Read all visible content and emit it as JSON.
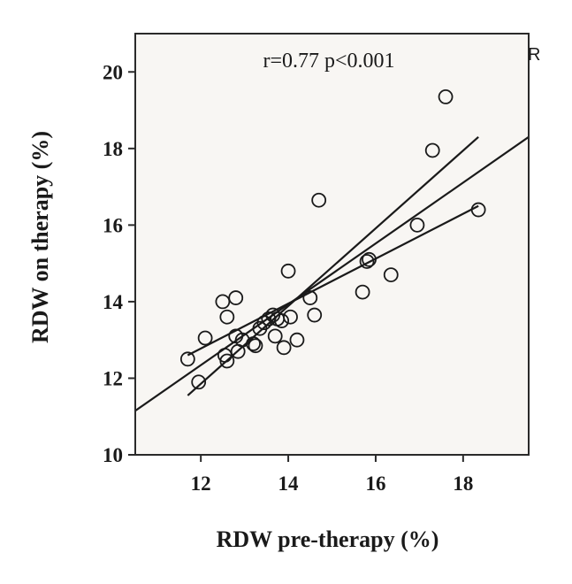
{
  "chart_data": {
    "type": "scatter",
    "title": "",
    "xlabel": "RDW pre-therapy (%)",
    "ylabel": "RDW on therapy (%)",
    "xlim": [
      10.5,
      19.5
    ],
    "ylim": [
      10,
      21
    ],
    "x_ticks": [
      12,
      14,
      16,
      18
    ],
    "y_ticks": [
      10,
      12,
      14,
      16,
      18,
      20
    ],
    "x_tick_labels": [
      "12",
      "14",
      "16",
      "18"
    ],
    "y_tick_labels": [
      "10",
      "12",
      "14",
      "16",
      "18",
      "20"
    ],
    "annotation": "r=0.77 p<0.001",
    "corner_label": "R",
    "grid": false,
    "background": "#f8f6f3",
    "marker": "open-circle",
    "series": [
      {
        "points": [
          [
            11.7,
            12.5
          ],
          [
            11.95,
            11.9
          ],
          [
            12.1,
            13.05
          ],
          [
            12.5,
            14.0
          ],
          [
            12.55,
            12.6
          ],
          [
            12.6,
            12.45
          ],
          [
            12.6,
            13.6
          ],
          [
            12.8,
            14.1
          ],
          [
            12.8,
            13.1
          ],
          [
            12.85,
            12.7
          ],
          [
            12.95,
            13.0
          ],
          [
            13.2,
            12.9
          ],
          [
            13.25,
            12.85
          ],
          [
            13.35,
            13.3
          ],
          [
            13.45,
            13.45
          ],
          [
            13.55,
            13.55
          ],
          [
            13.65,
            13.65
          ],
          [
            13.7,
            13.1
          ],
          [
            13.75,
            13.55
          ],
          [
            13.85,
            13.5
          ],
          [
            13.9,
            12.8
          ],
          [
            14.0,
            14.8
          ],
          [
            14.05,
            13.6
          ],
          [
            14.2,
            13.0
          ],
          [
            14.5,
            14.1
          ],
          [
            14.6,
            13.65
          ],
          [
            14.7,
            16.65
          ],
          [
            15.7,
            14.25
          ],
          [
            15.8,
            15.05
          ],
          [
            15.85,
            15.1
          ],
          [
            16.35,
            14.7
          ],
          [
            16.95,
            16.0
          ],
          [
            17.3,
            17.95
          ],
          [
            17.6,
            19.35
          ],
          [
            18.35,
            16.4
          ]
        ]
      }
    ],
    "lines": [
      {
        "role": "fit",
        "x": [
          10.5,
          19.5
        ],
        "y": [
          11.15,
          18.3
        ]
      },
      {
        "role": "upper-ci",
        "x": [
          11.7,
          18.35
        ],
        "y": [
          11.55,
          18.3
        ]
      },
      {
        "role": "lower-ci",
        "x": [
          11.7,
          18.35
        ],
        "y": [
          12.6,
          16.5
        ]
      }
    ]
  }
}
